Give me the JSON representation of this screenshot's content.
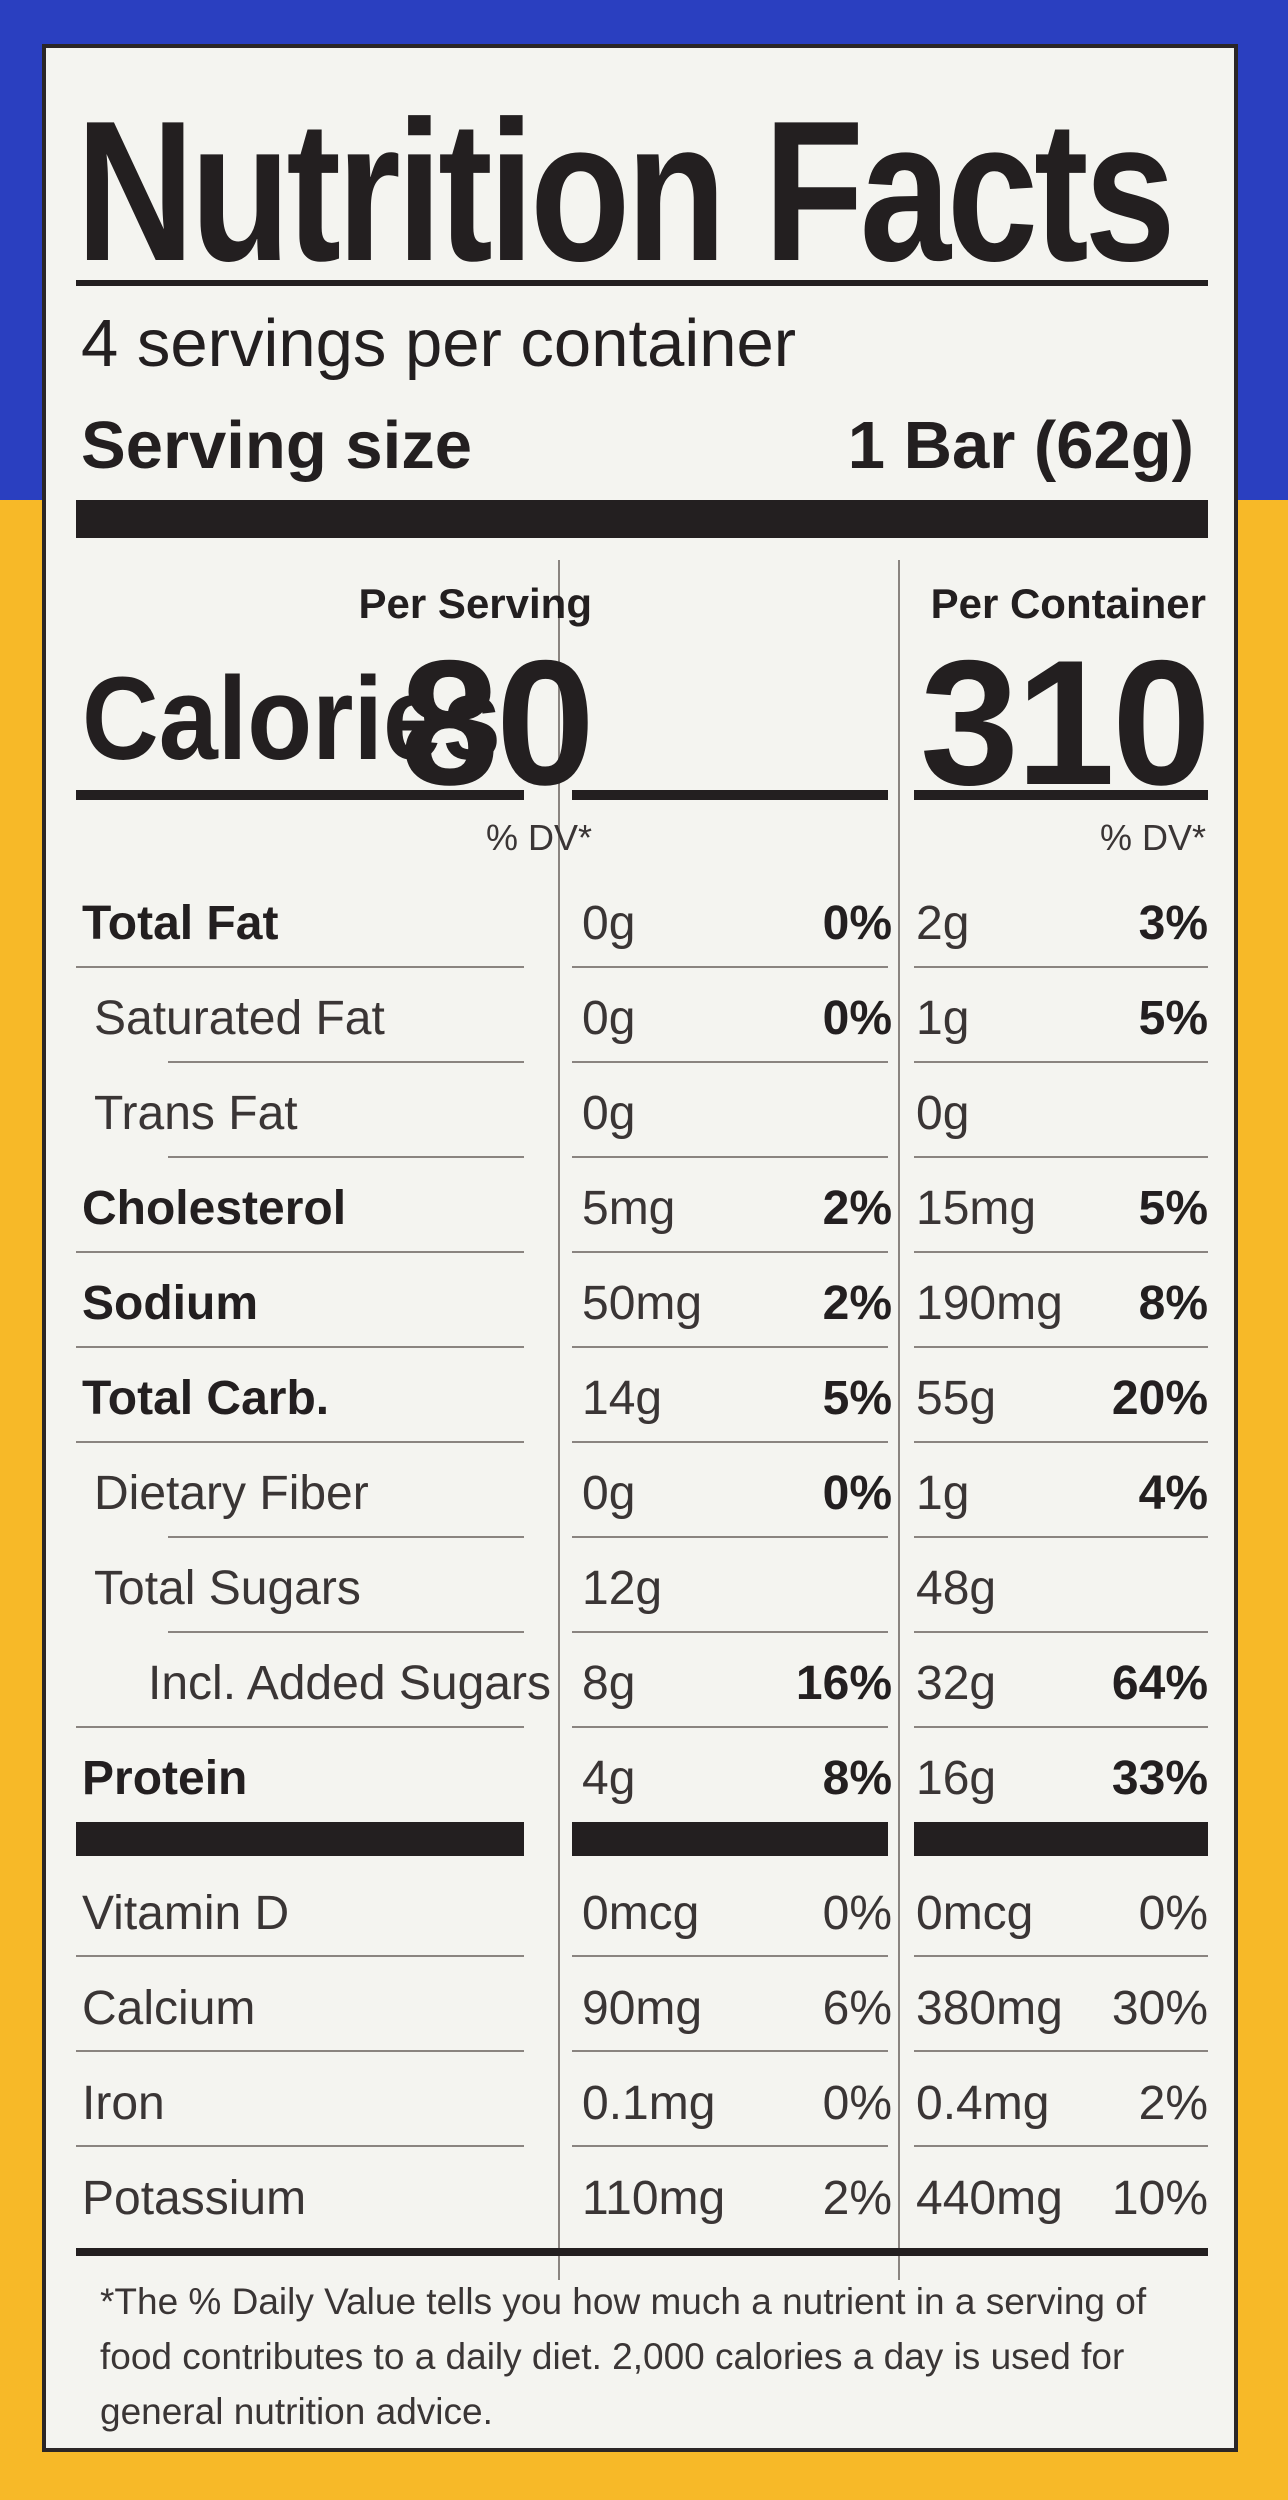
{
  "title": "Nutrition Facts",
  "servings_per_container": "4 servings per container",
  "serving_size": {
    "label": "Serving size",
    "value": "1 Bar (62g)"
  },
  "columns": [
    {
      "header": "Per Serving"
    },
    {
      "header": "Per Container"
    }
  ],
  "calories": {
    "label": "Calories",
    "per_serving": "80",
    "per_container": "310"
  },
  "dv_header": "% DV*",
  "nutrients": [
    {
      "label": "Total Fat",
      "bold": true,
      "indent": 0,
      "ps_amt": "0g",
      "ps_dv": "0%",
      "pc_amt": "2g",
      "pc_dv": "3%"
    },
    {
      "label": "Saturated Fat",
      "bold": false,
      "indent": 2,
      "ps_amt": "0g",
      "ps_dv": "0%",
      "pc_amt": "1g",
      "pc_dv": "5%"
    },
    {
      "label": "Trans Fat",
      "bold": false,
      "indent": 2,
      "ps_amt": "0g",
      "ps_dv": "",
      "pc_amt": "0g",
      "pc_dv": ""
    },
    {
      "label": "Cholesterol",
      "bold": true,
      "indent": 0,
      "ps_amt": "5mg",
      "ps_dv": "2%",
      "pc_amt": "15mg",
      "pc_dv": "5%"
    },
    {
      "label": "Sodium",
      "bold": true,
      "indent": 0,
      "ps_amt": "50mg",
      "ps_dv": "2%",
      "pc_amt": "190mg",
      "pc_dv": "8%"
    },
    {
      "label": "Total Carb.",
      "bold": true,
      "indent": 0,
      "ps_amt": "14g",
      "ps_dv": "5%",
      "pc_amt": "55g",
      "pc_dv": "20%"
    },
    {
      "label": "Dietary Fiber",
      "bold": false,
      "indent": 2,
      "ps_amt": "0g",
      "ps_dv": "0%",
      "pc_amt": "1g",
      "pc_dv": "4%"
    },
    {
      "label": "Total Sugars",
      "bold": false,
      "indent": 2,
      "ps_amt": "12g",
      "ps_dv": "",
      "pc_amt": "48g",
      "pc_dv": ""
    },
    {
      "label": "Incl. Added Sugars",
      "bold": false,
      "indent": 1,
      "ps_amt": "8g",
      "ps_dv": "16%",
      "pc_amt": "32g",
      "pc_dv": "64%"
    },
    {
      "label": "Protein",
      "bold": true,
      "indent": 0,
      "ps_amt": "4g",
      "ps_dv": "8%",
      "pc_amt": "16g",
      "pc_dv": "33%"
    }
  ],
  "vitamins": [
    {
      "label": "Vitamin D",
      "ps_amt": "0mcg",
      "ps_dv": "0%",
      "pc_amt": "0mcg",
      "pc_dv": "0%"
    },
    {
      "label": "Calcium",
      "ps_amt": "90mg",
      "ps_dv": "6%",
      "pc_amt": "380mg",
      "pc_dv": "30%"
    },
    {
      "label": "Iron",
      "ps_amt": "0.1mg",
      "ps_dv": "0%",
      "pc_amt": "0.4mg",
      "pc_dv": "2%"
    },
    {
      "label": "Potassium",
      "ps_amt": "110mg",
      "ps_dv": "2%",
      "pc_amt": "440mg",
      "pc_dv": "10%"
    }
  ],
  "footnote": "*The % Daily Value tells you how much a nutrient in a serving of food contributes to a daily diet. 2,000 calories a day is used for general nutrition advice.",
  "colors": {
    "panel": "#f4f4f0",
    "ink": "#231f20",
    "blue_band": "#2a3fc0",
    "yellow_band": "#f7b928"
  }
}
